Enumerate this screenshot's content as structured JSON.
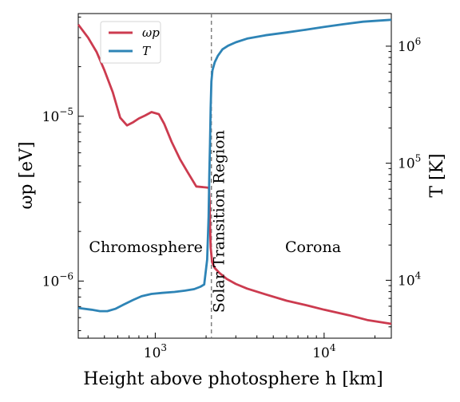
{
  "chart_data": {
    "type": "line",
    "x_scale": "log",
    "y_left_scale": "log",
    "y_right_scale": "log",
    "xlim": [
      350,
      25000
    ],
    "ylim_left": [
      4.5e-07,
      4.2e-05
    ],
    "ylim_right": [
      3200,
      1900000
    ],
    "xlabel": "Height above photosphere h [km]",
    "ylabel_left": "ωp [eV]",
    "ylabel_right": "T [K]",
    "x_ticks": [
      {
        "value": 1000,
        "base": "10",
        "exp": "3"
      },
      {
        "value": 10000,
        "base": "10",
        "exp": "4"
      }
    ],
    "y_left_ticks": [
      {
        "value": 1e-06,
        "base": "10",
        "exp": "−6"
      },
      {
        "value": 1e-05,
        "base": "10",
        "exp": "−5"
      }
    ],
    "y_right_ticks": [
      {
        "value": 10000,
        "base": "10",
        "exp": "4"
      },
      {
        "value": 100000,
        "base": "10",
        "exp": "5"
      },
      {
        "value": 1000000,
        "base": "10",
        "exp": "6"
      }
    ],
    "legend": {
      "placement": "upper-left",
      "entries": [
        {
          "label": "ωp",
          "color": "#cc3b4f"
        },
        {
          "label": "T",
          "color": "#2e84b6"
        }
      ]
    },
    "vline": {
      "x": 2150,
      "style": "dashed",
      "color": "#808080"
    },
    "annotations": [
      {
        "text": "Chromosphere",
        "x": 880,
        "y_left": 1.5e-06
      },
      {
        "text": "Solar Transition Region",
        "x": 2550,
        "y_left": 2.3e-06,
        "rotation": -90
      },
      {
        "text": "Corona",
        "x": 8600,
        "y_left": 1.5e-06
      }
    ],
    "series": [
      {
        "name": "ωp",
        "axis": "left",
        "color": "#cc3b4f",
        "x": [
          350,
          400,
          450,
          500,
          560,
          620,
          680,
          740,
          800,
          870,
          950,
          1050,
          1130,
          1250,
          1400,
          1550,
          1750,
          2000,
          2080,
          2100,
          2110,
          2130,
          2170,
          2250,
          2400,
          2650,
          3000,
          3500,
          4500,
          6000,
          8000,
          10000,
          14000,
          18000,
          25000
        ],
        "y": [
          3.6e-05,
          3e-05,
          2.45e-05,
          1.9e-05,
          1.4e-05,
          9.8e-06,
          8.8e-06,
          9.2e-06,
          9.7e-06,
          1.01e-05,
          1.06e-05,
          1.03e-05,
          9e-06,
          7e-06,
          5.5e-06,
          4.6e-06,
          3.75e-06,
          3.7e-06,
          3.68e-06,
          3e-06,
          2.2e-06,
          1.6e-06,
          1.3e-06,
          1.2e-06,
          1.12e-06,
          1.03e-06,
          9.6e-07,
          9e-07,
          8.3e-07,
          7.6e-07,
          7.1e-07,
          6.7e-07,
          6.2e-07,
          5.8e-07,
          5.5e-07
        ]
      },
      {
        "name": "T",
        "axis": "right",
        "color": "#2e84b6",
        "x": [
          350,
          420,
          470,
          520,
          580,
          650,
          740,
          830,
          950,
          1100,
          1300,
          1500,
          1700,
          1850,
          1950,
          2030,
          2070,
          2090,
          2110,
          2130,
          2150,
          2180,
          2250,
          2350,
          2500,
          2700,
          3000,
          3500,
          4500,
          6000,
          8000,
          10000,
          13000,
          17000,
          25000
        ],
        "y": [
          5800,
          5600,
          5450,
          5450,
          5700,
          6200,
          6800,
          7300,
          7650,
          7800,
          7950,
          8150,
          8400,
          8800,
          9200,
          15000,
          35000,
          80000,
          150000,
          300000,
          500000,
          620000,
          730000,
          830000,
          940000,
          1010000,
          1080000,
          1160000,
          1240000,
          1310000,
          1390000,
          1460000,
          1540000,
          1620000,
          1680000
        ]
      }
    ]
  }
}
